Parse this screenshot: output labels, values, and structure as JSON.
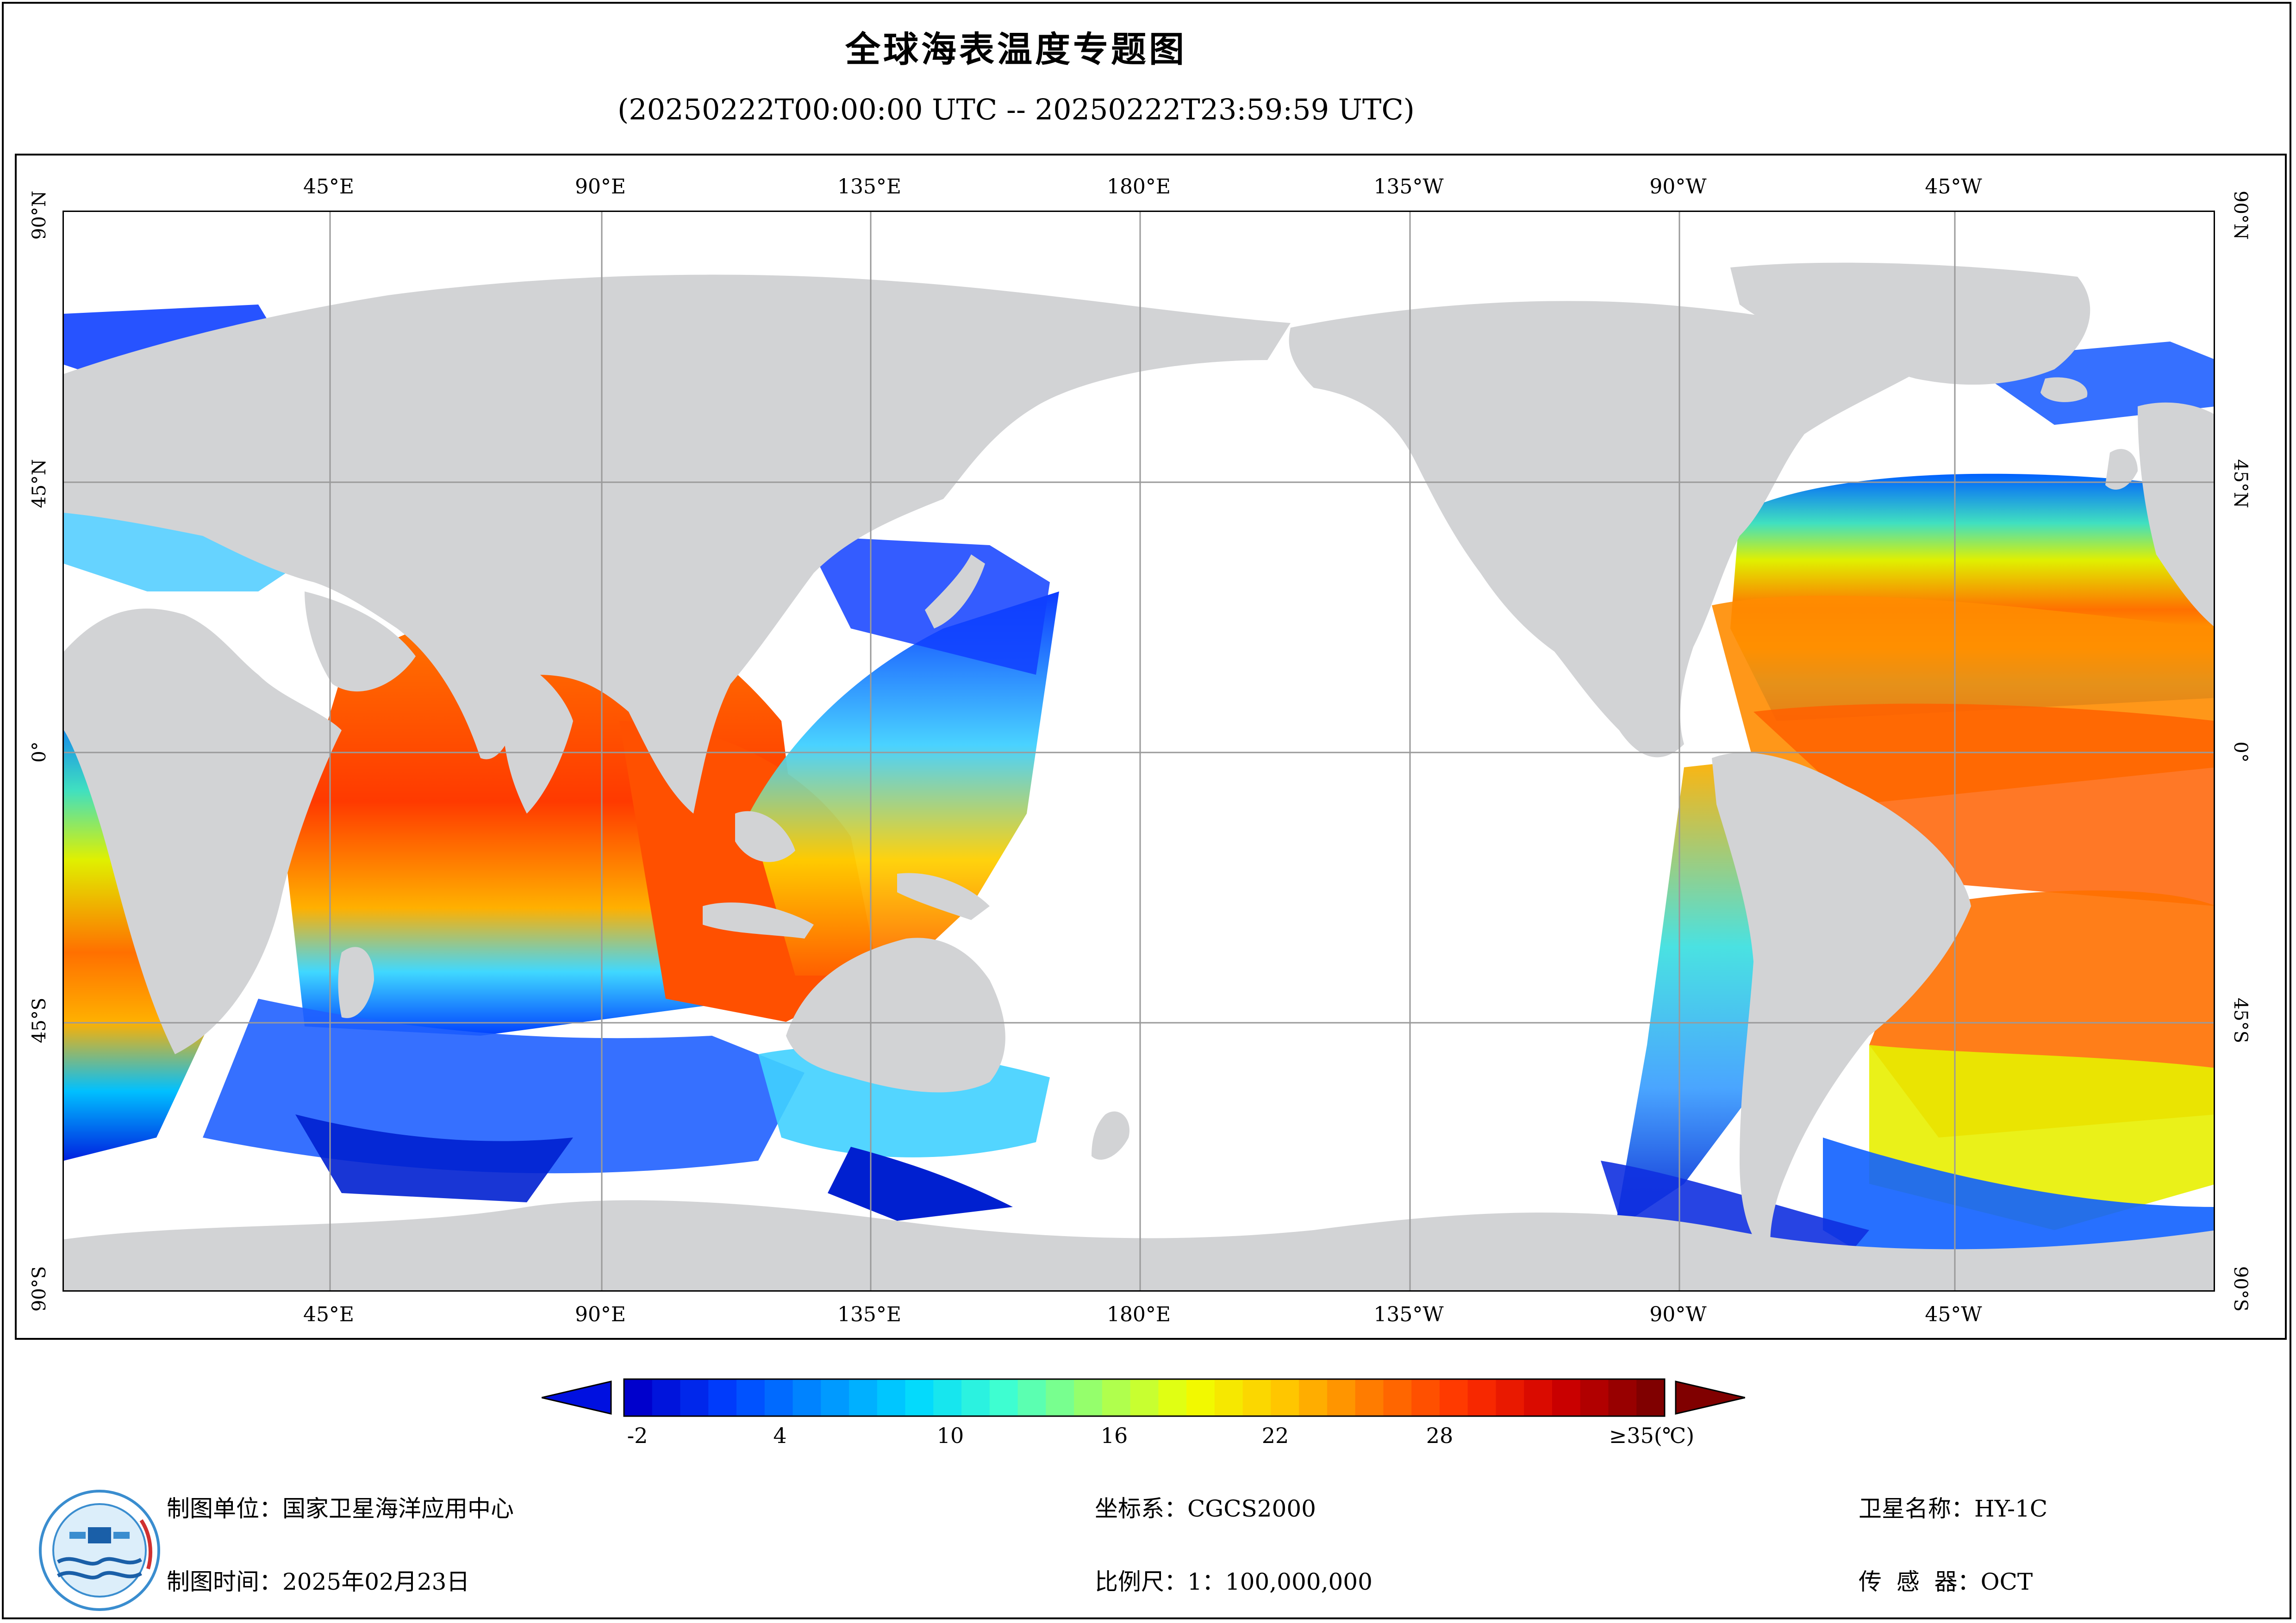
{
  "title": "全球海表温度专题图",
  "subtitle": "(20250222T00:00:00 UTC -- 20250222T23:59:59 UTC)",
  "longitude_labels": [
    "45°E",
    "90°E",
    "135°E",
    "180°E",
    "135°W",
    "90°W",
    "45°W"
  ],
  "latitude_labels": [
    "90°N",
    "45°N",
    "0°",
    "45°S",
    "90°S"
  ],
  "legend": {
    "tick_labels": [
      "-2",
      "4",
      "10",
      "16",
      "22",
      "28",
      "≥35(℃)"
    ],
    "min_value": -2,
    "max_value": 35,
    "unit": "℃",
    "colors": [
      "#0000cc",
      "#0040ff",
      "#0090ff",
      "#00d8ff",
      "#40ffd0",
      "#a0ff60",
      "#f0ff00",
      "#ffc800",
      "#ff7800",
      "#ff3000",
      "#d00000",
      "#800000"
    ]
  },
  "colors": {
    "land": "#d2d3d5",
    "ocean_no_data": "#ffffff",
    "grid": "#9a9a9a"
  },
  "footer": {
    "producer": "制图单位：国家卫星海洋应用中心",
    "date": "制图时间：2025年02月23日",
    "crs": "坐标系：CGCS2000",
    "scale": "比例尺：1：100,000,000",
    "satellite": "卫星名称：HY-1C",
    "sensor": "传  感  器：OCT"
  },
  "logo": {
    "name": "national-satellite-ocean-application-service-logo"
  }
}
